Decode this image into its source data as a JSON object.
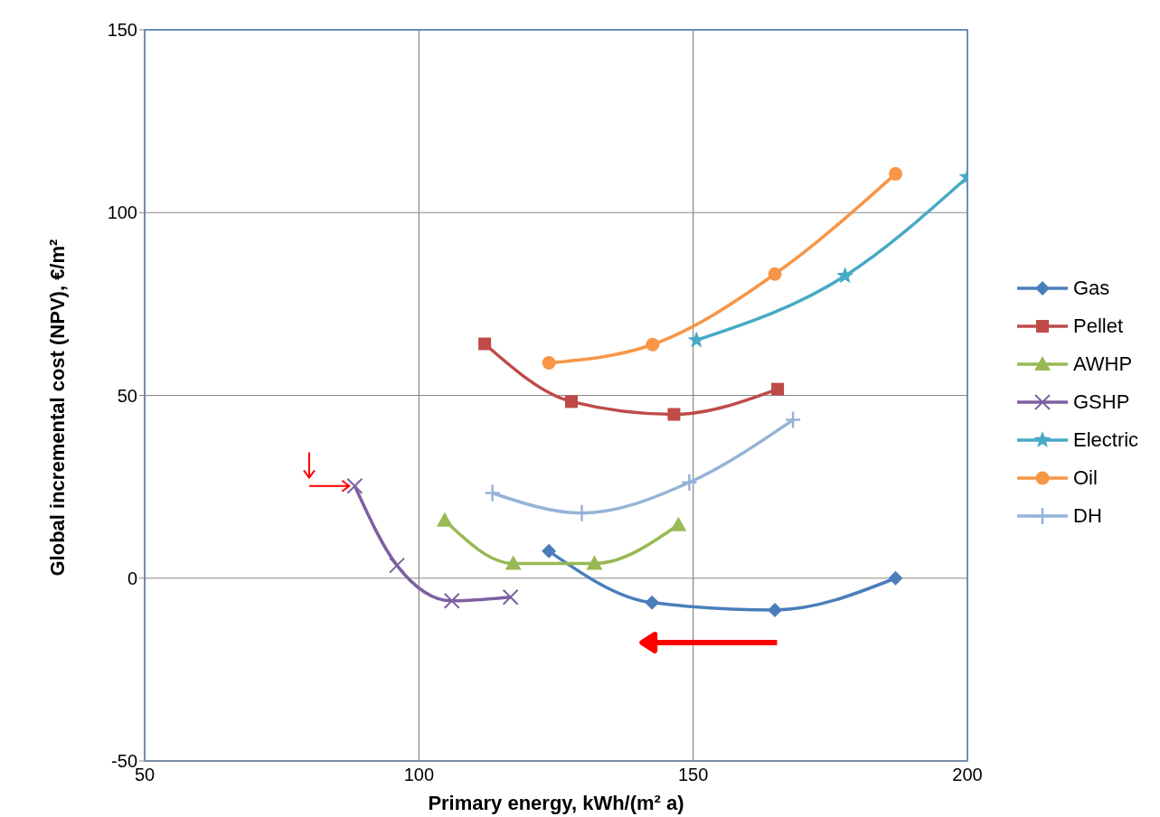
{
  "chart_data": {
    "type": "line",
    "xlabel": "Primary energy, kWh/(m² a)",
    "ylabel": "Global incremental cost (NPV), €/m²",
    "xlim": [
      50,
      200
    ],
    "xticks": [
      50,
      100,
      150,
      200
    ],
    "ylim": [
      -50,
      150
    ],
    "yticks": [
      -50,
      0,
      50,
      100,
      150
    ],
    "grid": true,
    "legend": "right",
    "line_style": "solid",
    "series": [
      {
        "name": "Gas",
        "color": "#4a7ebb",
        "marker": "diamond",
        "x": [
          123.7,
          142.5,
          164.9,
          186.9
        ],
        "values": [
          7.4,
          -6.7,
          -8.7,
          0
        ]
      },
      {
        "name": "Pellet",
        "color": "#be4b48",
        "marker": "square",
        "x": [
          112,
          127.8,
          146.5,
          165.4
        ],
        "values": [
          64.1,
          48.3,
          44.8,
          51.7
        ]
      },
      {
        "name": "AWHP",
        "color": "#98b954",
        "marker": "triangle",
        "x": [
          104.7,
          117.2,
          132,
          147.3
        ],
        "values": [
          15.8,
          4,
          4,
          14.6
        ]
      },
      {
        "name": "GSHP",
        "color": "#7d60a0",
        "marker": "cross",
        "x": [
          88.3,
          96,
          106,
          116.7
        ],
        "values": [
          25.2,
          3.5,
          -6.2,
          -5.2
        ]
      },
      {
        "name": "Electric",
        "color": "#46aac5",
        "marker": "star",
        "x": [
          150.6,
          177.7,
          200
        ],
        "values": [
          65.1,
          82.7,
          109.7
        ]
      },
      {
        "name": "Oil",
        "color": "#f79646",
        "marker": "circle",
        "x": [
          123.7,
          142.6,
          164.9,
          186.9
        ],
        "values": [
          58.9,
          63.9,
          83.2,
          110.6
        ]
      },
      {
        "name": "DH",
        "color": "#95b3d7",
        "marker": "plus",
        "x": [
          113.4,
          129.7,
          149.3,
          168.2
        ],
        "values": [
          23.3,
          17.8,
          26.2,
          43.3
        ]
      }
    ]
  }
}
